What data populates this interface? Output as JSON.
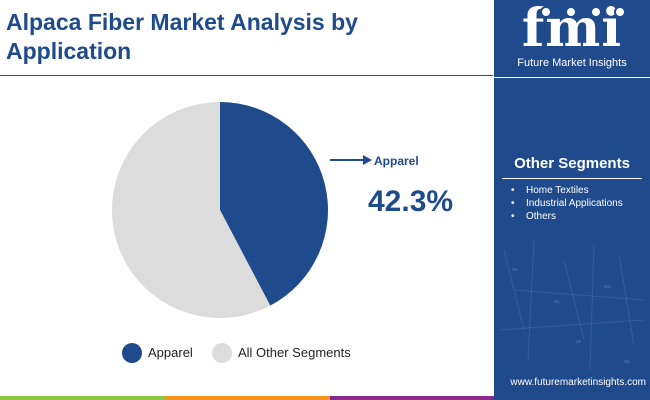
{
  "title": "Alpaca Fiber Market Analysis by Application",
  "brand": {
    "logo_text": "fmi",
    "name": "Future Market Insights",
    "website": "www.futuremarketinsights.com"
  },
  "other_segments": {
    "heading": "Other Segments",
    "items": [
      "Home Textiles",
      "Industrial Applications",
      "Others"
    ]
  },
  "callout": {
    "label": "Apparel",
    "value": "42.3%"
  },
  "colors": {
    "primary": "#1f4a8c",
    "secondary": "#dcdcdc",
    "accent_green": "#8dc63f",
    "accent_orange": "#f7941d",
    "accent_purple": "#8a2b8a"
  },
  "chart_data": {
    "type": "pie",
    "title": "Alpaca Fiber Market Analysis by Application",
    "slices": [
      {
        "label": "Apparel",
        "value": 42.3,
        "color": "#1f4a8c"
      },
      {
        "label": "All Other Segments",
        "value": 57.7,
        "color": "#dcdcdc"
      }
    ],
    "start_angle_deg": 0,
    "direction": "clockwise",
    "legend_position": "bottom",
    "data_labels": [
      "42.3%"
    ]
  }
}
